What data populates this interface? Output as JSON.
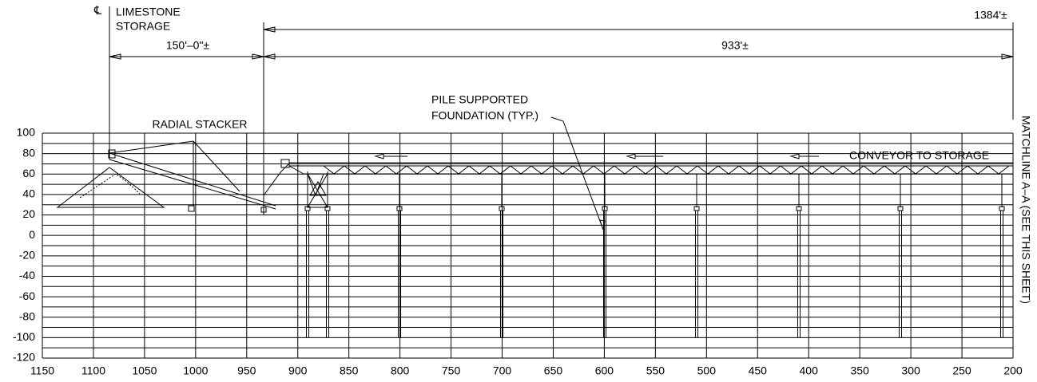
{
  "labels": {
    "cl_symbol": "℄",
    "limestone": "LIMESTONE",
    "storage": "STORAGE",
    "dim_150": "150'–0\"±",
    "dim_933": "933'±",
    "dim_1384": "1384'±",
    "radial_stacker": "RADIAL STACKER",
    "pile_1": "PILE SUPPORTED",
    "pile_2": "FOUNDATION (TYP.)",
    "conveyor": "CONVEYOR TO STORAGE",
    "matchline": "MATCHLINE A–A (SEE THIS SHEET)"
  },
  "x_ticks": [
    1150,
    1100,
    1050,
    1000,
    950,
    900,
    850,
    800,
    750,
    700,
    650,
    600,
    550,
    500,
    450,
    400,
    350,
    300,
    250,
    200
  ],
  "y_ticks": [
    100,
    80,
    60,
    40,
    20,
    0,
    -20,
    -40,
    -60,
    -80,
    -100,
    -120
  ]
}
